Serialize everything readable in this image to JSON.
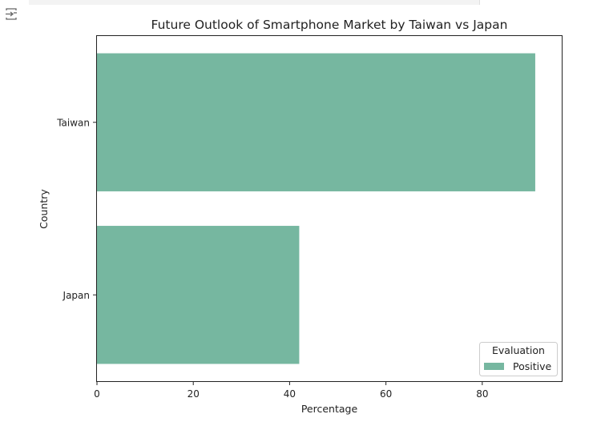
{
  "chart_data": {
    "type": "bar",
    "orientation": "horizontal",
    "title": "Future Outlook of Smartphone Market by Taiwan vs Japan",
    "xlabel": "Percentage",
    "ylabel": "Country",
    "categories": [
      "Taiwan",
      "Japan"
    ],
    "series": [
      {
        "name": "Positive",
        "values": [
          91,
          42
        ],
        "color": "#76b7a0"
      }
    ],
    "xlim": [
      0,
      96.5
    ],
    "xticks": [
      0,
      20,
      40,
      60,
      80
    ],
    "xtick_labels": [
      "0",
      "20",
      "40",
      "60",
      "80"
    ],
    "legend": {
      "title": "Evaluation",
      "placement": "lower-right"
    },
    "grid": false
  },
  "colors": {
    "bar": "#76b7a0",
    "text": "#222222"
  },
  "toolbar": {
    "output_icon": "output-expand-icon"
  }
}
